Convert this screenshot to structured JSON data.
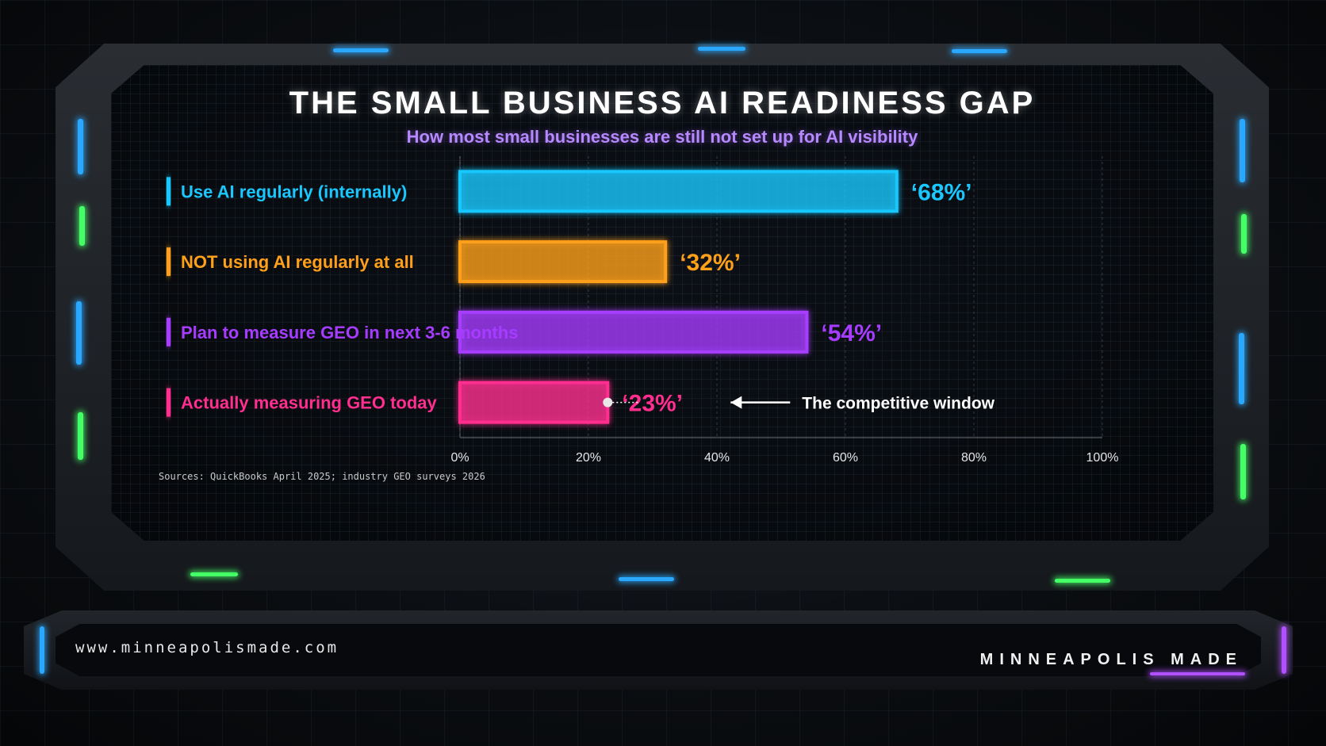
{
  "header": {
    "title": "THE SMALL BUSINESS AI READINESS GAP",
    "subtitle": "How most small businesses are still not set up for AI visibility"
  },
  "chart_data": {
    "type": "bar",
    "orientation": "horizontal",
    "title": "THE SMALL BUSINESS AI READINESS GAP",
    "subtitle": "How most small businesses are still not set up for AI visibility",
    "categories": [
      "Use AI regularly (internally)",
      "NOT using AI regularly at all",
      "Plan to measure GEO in next 3-6 months",
      "Actually measuring GEO today"
    ],
    "values": [
      68,
      32,
      54,
      23
    ],
    "value_labels": [
      "‘68%’",
      "‘32%’",
      "‘54%’",
      "‘23%’"
    ],
    "colors": [
      "#19c8ff",
      "#ffa01a",
      "#a63cff",
      "#ff2e8f"
    ],
    "xlim": [
      0,
      100
    ],
    "x_ticks": [
      "0%",
      "20%",
      "40%",
      "60%",
      "80%",
      "100%"
    ],
    "grid": true,
    "annotation": {
      "text": "The competitive window",
      "target_index": 3
    }
  },
  "sources": "Sources: QuickBooks April 2025; industry GEO surveys 2026",
  "footer": {
    "url": "www.minneapolismade.com",
    "brand": "MINNEAPOLIS MADE"
  }
}
